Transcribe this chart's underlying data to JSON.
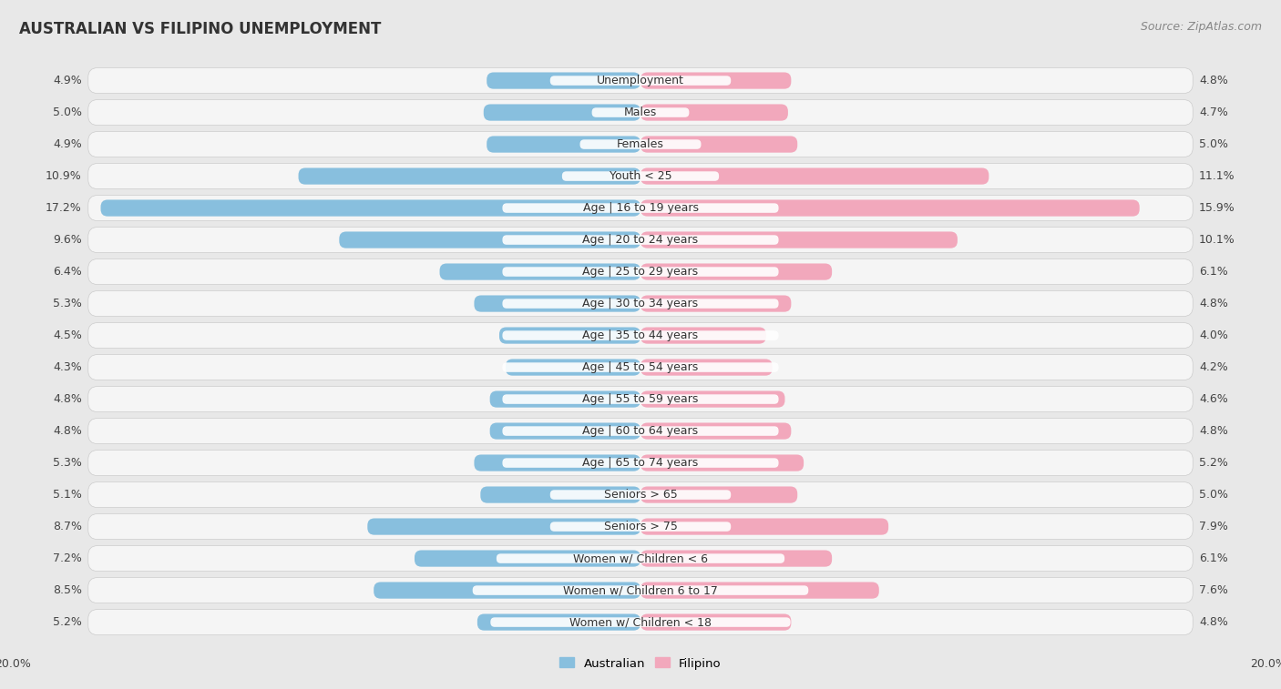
{
  "title": "AUSTRALIAN VS FILIPINO UNEMPLOYMENT",
  "source": "Source: ZipAtlas.com",
  "categories": [
    "Unemployment",
    "Males",
    "Females",
    "Youth < 25",
    "Age | 16 to 19 years",
    "Age | 20 to 24 years",
    "Age | 25 to 29 years",
    "Age | 30 to 34 years",
    "Age | 35 to 44 years",
    "Age | 45 to 54 years",
    "Age | 55 to 59 years",
    "Age | 60 to 64 years",
    "Age | 65 to 74 years",
    "Seniors > 65",
    "Seniors > 75",
    "Women w/ Children < 6",
    "Women w/ Children 6 to 17",
    "Women w/ Children < 18"
  ],
  "australian": [
    4.9,
    5.0,
    4.9,
    10.9,
    17.2,
    9.6,
    6.4,
    5.3,
    4.5,
    4.3,
    4.8,
    4.8,
    5.3,
    5.1,
    8.7,
    7.2,
    8.5,
    5.2
  ],
  "filipino": [
    4.8,
    4.7,
    5.0,
    11.1,
    15.9,
    10.1,
    6.1,
    4.8,
    4.0,
    4.2,
    4.6,
    4.8,
    5.2,
    5.0,
    7.9,
    6.1,
    7.6,
    4.8
  ],
  "australian_color": "#88bfde",
  "australian_color_dark": "#5b9ec9",
  "filipino_color": "#f2a8bc",
  "filipino_color_dark": "#e8728e",
  "axis_max": 20.0,
  "background_color": "#e8e8e8",
  "row_bg_color": "#f5f5f5",
  "label_fontsize": 9.0,
  "title_fontsize": 12,
  "source_fontsize": 9,
  "value_fontsize": 9.0
}
